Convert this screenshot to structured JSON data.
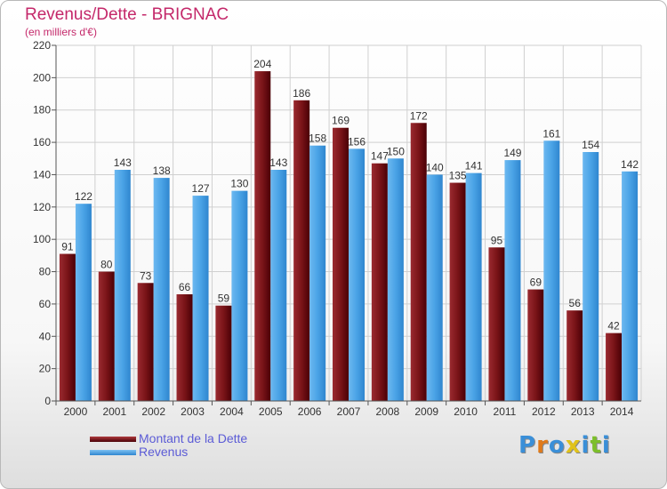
{
  "chart_data": {
    "type": "bar",
    "title": "Revenus/Dette - BRIGNAC",
    "subtitle": "(en milliers d'€)",
    "categories": [
      "2000",
      "2001",
      "2002",
      "2003",
      "2004",
      "2005",
      "2006",
      "2007",
      "2008",
      "2009",
      "2010",
      "2011",
      "2012",
      "2013",
      "2014"
    ],
    "series": [
      {
        "name": "Montant de la Dette",
        "color": "#7a1418",
        "values": [
          91,
          80,
          73,
          66,
          59,
          204,
          186,
          169,
          147,
          172,
          135,
          95,
          69,
          56,
          42
        ]
      },
      {
        "name": "Revenus",
        "color": "#3f9ae0",
        "values": [
          122,
          143,
          138,
          127,
          130,
          143,
          158,
          156,
          150,
          140,
          141,
          149,
          161,
          154,
          142
        ]
      }
    ],
    "ylim": [
      0,
      220
    ],
    "yticks": [
      0,
      20,
      40,
      60,
      80,
      100,
      120,
      140,
      160,
      180,
      200,
      220
    ],
    "grid": true,
    "legend_position": "bottom-left"
  },
  "legend": {
    "debt_label": "Montant de la Dette",
    "revenue_label": "Revenus",
    "debt_color": "#7a1418",
    "revenue_color": "#3f9ae0"
  },
  "brand": {
    "text": "Proxiti"
  }
}
